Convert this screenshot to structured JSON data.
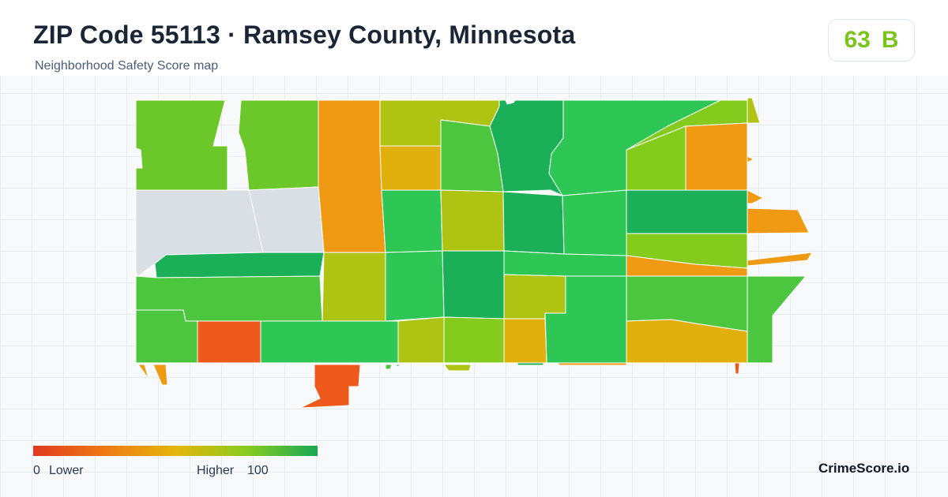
{
  "header": {
    "title": "ZIP Code 55113 · Ramsey County, Minnesota",
    "subtitle": "Neighborhood Safety Score map"
  },
  "score": {
    "value": "63",
    "grade": "B",
    "color": "#7ac41c"
  },
  "legend": {
    "min_label": "0",
    "low_label": "Lower",
    "high_label": "Higher",
    "max_label": "100",
    "colors": [
      "#e03a1e",
      "#ee7a14",
      "#e4b60c",
      "#8acb1f",
      "#19a853"
    ]
  },
  "brand": "CrimeScore.io",
  "map": {
    "border_color": "#ffffff",
    "no_data_color": "#d9dfe5",
    "palette": {
      "dark_green": "#1bb058",
      "green": "#2ec655",
      "mid_green": "#4cc63e",
      "lime": "#6cc82a",
      "yellow_green": "#84cb1d",
      "olive": "#afc313",
      "gold": "#e0b00c",
      "orange": "#ef9a12",
      "red_orange": "#ef5a1c"
    }
  }
}
